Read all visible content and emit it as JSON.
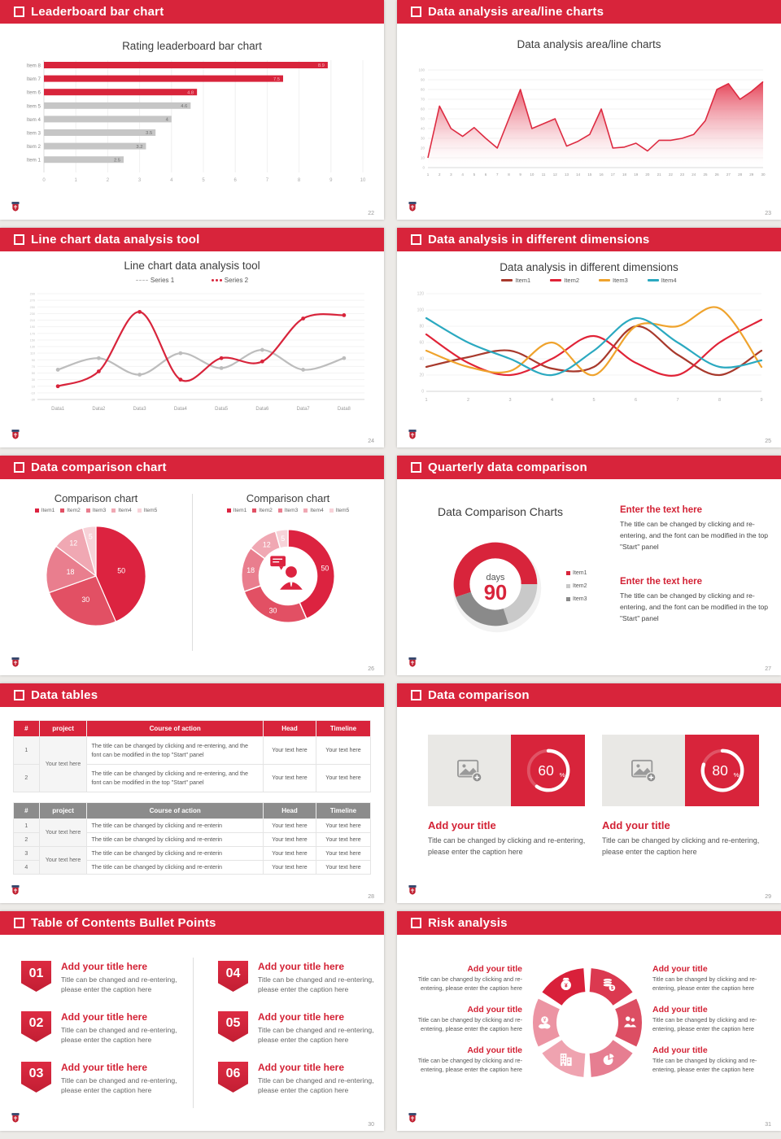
{
  "theme": {
    "accent": "#D8243B",
    "page_bg": "#ECEAE7",
    "slide_bg": "#FFFFFF",
    "gray_bar": "#C6C6C6",
    "light_gray": "#C9C9C9",
    "dark_gray": "#8A8A8A"
  },
  "slides": [
    {
      "id": "leaderboard-bar-chart",
      "header": "Leaderboard bar chart",
      "page_number": "22",
      "chart_title": "Rating leaderboard bar chart"
    },
    {
      "id": "area-line-charts",
      "header": "Data analysis area/line charts",
      "page_number": "23",
      "chart_title": "Data analysis area/line charts"
    },
    {
      "id": "line-chart-tool",
      "header": "Line chart data analysis tool",
      "page_number": "24",
      "chart_title": "Line chart data analysis tool"
    },
    {
      "id": "different-dimensions",
      "header": "Data analysis in different dimensions",
      "page_number": "25",
      "chart_title": "Data analysis in different dimensions"
    },
    {
      "id": "data-comparison-chart",
      "header": "Data comparison chart",
      "page_number": "26",
      "left_title": "Comparison chart",
      "right_title": "Comparison chart"
    },
    {
      "id": "quarterly-data-comparison",
      "header": "Quarterly data comparison",
      "page_number": "27",
      "chart_title": "Data Comparison Charts",
      "center_label": "days",
      "center_value": "90",
      "text_blocks": [
        {
          "heading": "Enter the text here",
          "body": "The title can be changed by clicking and re-entering, and the font can be modified in the top \"Start\" panel"
        },
        {
          "heading": "Enter the text here",
          "body": "The title can be changed by clicking and re-entering, and the font can be modified in the top \"Start\" panel"
        }
      ]
    },
    {
      "id": "data-tables",
      "header": "Data tables",
      "page_number": "28",
      "tables": {
        "columns": [
          "#",
          "project",
          "Course of action",
          "Head",
          "Timeline"
        ],
        "long_action": "The title can be changed by clicking and re-entering, and the font can be modified in the top \"Start\" panel",
        "short_action": "The title can be changed by clicking and re-enterin",
        "cell": "Your text here",
        "project_cell": "Your text here"
      }
    },
    {
      "id": "data-comparison",
      "header": "Data comparison",
      "page_number": "29",
      "card_title": "Add your title",
      "card_caption": "Title can be changed by clicking and re-entering, please enter the caption here"
    },
    {
      "id": "toc-bullet-points",
      "header": "Table of Contents Bullet Points",
      "page_number": "30",
      "numbers": [
        "01",
        "02",
        "03",
        "04",
        "05",
        "06"
      ],
      "item_title": "Add your title here",
      "item_caption": "Title can be changed and re-entering, please enter the caption here"
    },
    {
      "id": "risk-analysis",
      "header": "Risk analysis",
      "page_number": "31",
      "block_title": "Add your title",
      "block_caption": "Title can be changed by clicking and re-entering, please enter the caption here",
      "icons": [
        "money-bag-icon",
        "coins-icon",
        "people-icon",
        "pie-chart-icon",
        "building-icon",
        "cloud-yen-icon"
      ],
      "segment_colors": [
        "#D9203A",
        "#DB3950",
        "#DC4E63",
        "#E67E91",
        "#EFA3B0",
        "#EC94A3"
      ]
    }
  ],
  "chart_data": [
    {
      "slide": "leaderboard-bar-chart",
      "type": "bar",
      "orientation": "horizontal",
      "title": "Rating leaderboard bar chart",
      "categories": [
        "Item 1",
        "Item 2",
        "Item 3",
        "Item 4",
        "Item 5",
        "Item 6",
        "Item 7",
        "Item 8"
      ],
      "values": [
        2.5,
        3.2,
        3.5,
        4,
        4.6,
        4.8,
        7.5,
        8.9
      ],
      "value_labels": [
        "2.5",
        "3.2",
        "3.5",
        "4",
        "4.6",
        "4.8",
        "7.5",
        "8.9"
      ],
      "colors": [
        "#C6C6C6",
        "#C6C6C6",
        "#C6C6C6",
        "#C6C6C6",
        "#C6C6C6",
        "#D8243B",
        "#D8243B",
        "#D8243B"
      ],
      "xlim": [
        0,
        10
      ],
      "xticks": [
        0,
        1,
        2,
        3,
        4,
        5,
        6,
        7,
        8,
        9,
        10
      ],
      "grid": "vertical"
    },
    {
      "slide": "area-line-charts",
      "type": "area",
      "title": "Data analysis area/line charts",
      "color": "#DD2B41",
      "x": [
        1,
        2,
        3,
        4,
        5,
        6,
        7,
        8,
        9,
        10,
        11,
        12,
        13,
        14,
        15,
        16,
        17,
        18,
        19,
        20,
        21,
        22,
        23,
        24,
        25,
        26,
        27,
        28,
        29,
        30
      ],
      "values": [
        10,
        63,
        40,
        32,
        41,
        30,
        20,
        50,
        80,
        40,
        45,
        50,
        22,
        27,
        34,
        60,
        20,
        21,
        25,
        17,
        28,
        28,
        30,
        34,
        48,
        80,
        86,
        70,
        78,
        88
      ],
      "ylim": [
        0,
        100
      ],
      "ytick_step": 10,
      "grid": "horizontal"
    },
    {
      "slide": "line-chart-tool",
      "type": "line",
      "title": "Line chart data analysis tool",
      "categories": [
        "Data1",
        "Data2",
        "Data3",
        "Data4",
        "Data5",
        "Data6",
        "Data7",
        "Data8"
      ],
      "ylim": [
        -30,
        290
      ],
      "ytick_step": 20,
      "grid": "horizontal",
      "legend_position": "top",
      "smooth": true,
      "markers": true,
      "series": [
        {
          "name": "Series 1",
          "color": "#BDBDBD",
          "style": "dash",
          "values": [
            60,
            95,
            45,
            110,
            65,
            120,
            60,
            95
          ]
        },
        {
          "name": "Series 2",
          "color": "#D8243B",
          "style": "dots",
          "values": [
            10,
            55,
            235,
            30,
            95,
            85,
            215,
            225
          ]
        }
      ]
    },
    {
      "slide": "different-dimensions",
      "type": "line",
      "title": "Data analysis in different dimensions",
      "x": [
        1,
        2,
        3,
        4,
        5,
        6,
        7,
        8,
        9
      ],
      "ylim": [
        0,
        120
      ],
      "ytick_step": 20,
      "grid": "horizontal",
      "legend_position": "top",
      "smooth": true,
      "markers": false,
      "series": [
        {
          "name": "Item1",
          "color": "#A8392C",
          "values": [
            30,
            42,
            50,
            28,
            30,
            80,
            45,
            20,
            50
          ]
        },
        {
          "name": "Item2",
          "color": "#E02337",
          "values": [
            70,
            35,
            20,
            40,
            68,
            35,
            20,
            60,
            88
          ]
        },
        {
          "name": "Item3",
          "color": "#EFA32D",
          "values": [
            50,
            30,
            25,
            60,
            20,
            80,
            80,
            102,
            30
          ]
        },
        {
          "name": "Item4",
          "color": "#2BA9C0",
          "values": [
            90,
            60,
            40,
            20,
            50,
            90,
            60,
            30,
            38
          ]
        }
      ]
    },
    {
      "slide": "data-comparison-chart-left",
      "type": "pie",
      "title": "Comparison chart",
      "labels": [
        "Item1",
        "Item2",
        "Item3",
        "Item4",
        "Item5"
      ],
      "values": [
        50,
        30,
        18,
        12,
        5
      ],
      "colors": [
        "#DC2340",
        "#E25064",
        "#E97E8E",
        "#F0A8B3",
        "#F7D2D8"
      ]
    },
    {
      "slide": "data-comparison-chart-right",
      "type": "donut",
      "title": "Comparison chart",
      "center_icon": "presenter-icon",
      "labels": [
        "Item1",
        "Item2",
        "Item3",
        "Item4",
        "Item5"
      ],
      "values": [
        50,
        30,
        18,
        12,
        5
      ],
      "colors": [
        "#DC2340",
        "#E25064",
        "#E97E8E",
        "#F0A8B3",
        "#F7D2D8"
      ]
    },
    {
      "slide": "quarterly-data-comparison",
      "type": "donut",
      "title": "Data Comparison Charts",
      "labels": [
        "Item1",
        "Item2",
        "Item3"
      ],
      "values": [
        55,
        20,
        25
      ],
      "colors": [
        "#D8243B",
        "#C9C9C9",
        "#8A8A8A"
      ],
      "start_angle": -108,
      "center_label": "days",
      "center_value": "90"
    },
    {
      "slide": "data-comparison",
      "type": "progress-ring",
      "values": [
        60,
        80
      ],
      "unit": "%",
      "ring_color": "#FFFFFF",
      "box_color": "#D8243B"
    }
  ]
}
